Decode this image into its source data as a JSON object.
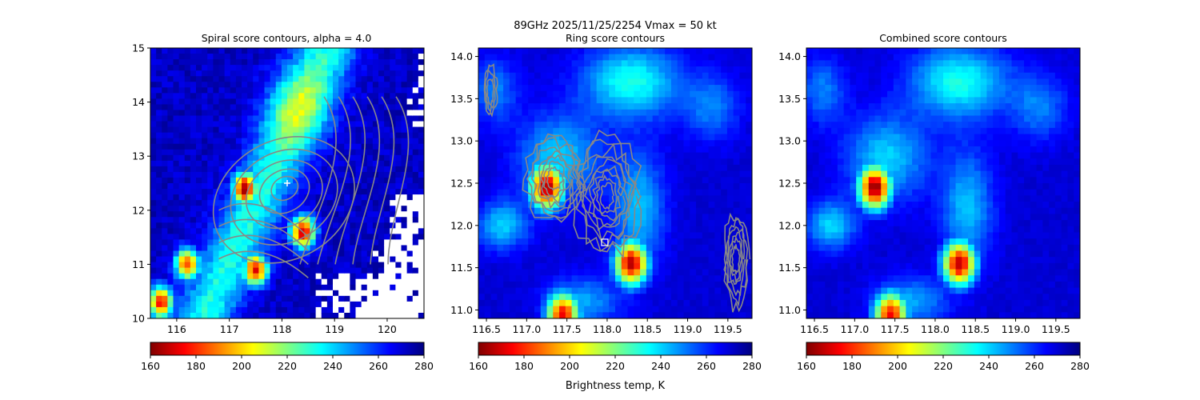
{
  "figure": {
    "suptitle_line1": "89GHz  2025/11/25/2254    Vmax = 50 kt",
    "colorbar_label": "Brightness temp, K"
  },
  "colormap": {
    "name": "jet_r",
    "vmin": 160,
    "vmax": 280,
    "stops": [
      "#800000",
      "#ff0000",
      "#ff8000",
      "#ffff00",
      "#80ff80",
      "#00ffff",
      "#0080ff",
      "#0000ff",
      "#000080"
    ]
  },
  "chart_data": [
    {
      "type": "heatmap",
      "title": "Spiral score contours, alpha =  4.0",
      "xlim": [
        115.5,
        120.7
      ],
      "ylim": [
        10,
        15
      ],
      "xticks": [
        116,
        117,
        118,
        119,
        120
      ],
      "yticks": [
        10,
        11,
        12,
        13,
        14,
        15
      ],
      "colorbar_ticks": [
        160,
        180,
        200,
        220,
        240,
        260,
        280
      ],
      "center_marker": {
        "x": 118.1,
        "y": 12.5,
        "symbol": "+"
      },
      "cold_cores": [
        {
          "x": 117.3,
          "y": 12.4,
          "tb": 160
        },
        {
          "x": 118.4,
          "y": 11.6,
          "tb": 165
        },
        {
          "x": 117.5,
          "y": 10.9,
          "tb": 170
        },
        {
          "x": 116.2,
          "y": 11.0,
          "tb": 180
        },
        {
          "x": 115.7,
          "y": 10.3,
          "tb": 175
        }
      ],
      "contours": "spiral score (gray)"
    },
    {
      "type": "heatmap",
      "title": "Ring score contours",
      "xlim": [
        116.4,
        119.8
      ],
      "ylim": [
        10.9,
        14.1
      ],
      "xticks": [
        116.5,
        117.0,
        117.5,
        118.0,
        118.5,
        119.0,
        119.5
      ],
      "yticks": [
        11.0,
        11.5,
        12.0,
        12.5,
        13.0,
        13.5,
        14.0
      ],
      "colorbar_ticks": [
        160,
        180,
        200,
        220,
        240,
        260,
        280
      ],
      "center_marker": {
        "x": 117.97,
        "y": 11.8,
        "symbol": "square"
      },
      "cold_cores": [
        {
          "x": 117.25,
          "y": 12.45,
          "tb": 162
        },
        {
          "x": 118.3,
          "y": 11.55,
          "tb": 165
        },
        {
          "x": 117.45,
          "y": 10.95,
          "tb": 175
        }
      ],
      "contours": "ring score (gray)"
    },
    {
      "type": "heatmap",
      "title": "Combined score contours",
      "xlim": [
        116.4,
        119.8
      ],
      "ylim": [
        10.9,
        14.1
      ],
      "xticks": [
        116.5,
        117.0,
        117.5,
        118.0,
        118.5,
        119.0,
        119.5
      ],
      "yticks": [
        11.0,
        11.5,
        12.0,
        12.5,
        13.0,
        13.5,
        14.0
      ],
      "colorbar_ticks": [
        160,
        180,
        200,
        220,
        240,
        260,
        280
      ],
      "cold_cores": [
        {
          "x": 117.25,
          "y": 12.45,
          "tb": 162
        },
        {
          "x": 118.3,
          "y": 11.55,
          "tb": 165
        },
        {
          "x": 117.45,
          "y": 10.95,
          "tb": 175
        }
      ]
    }
  ]
}
